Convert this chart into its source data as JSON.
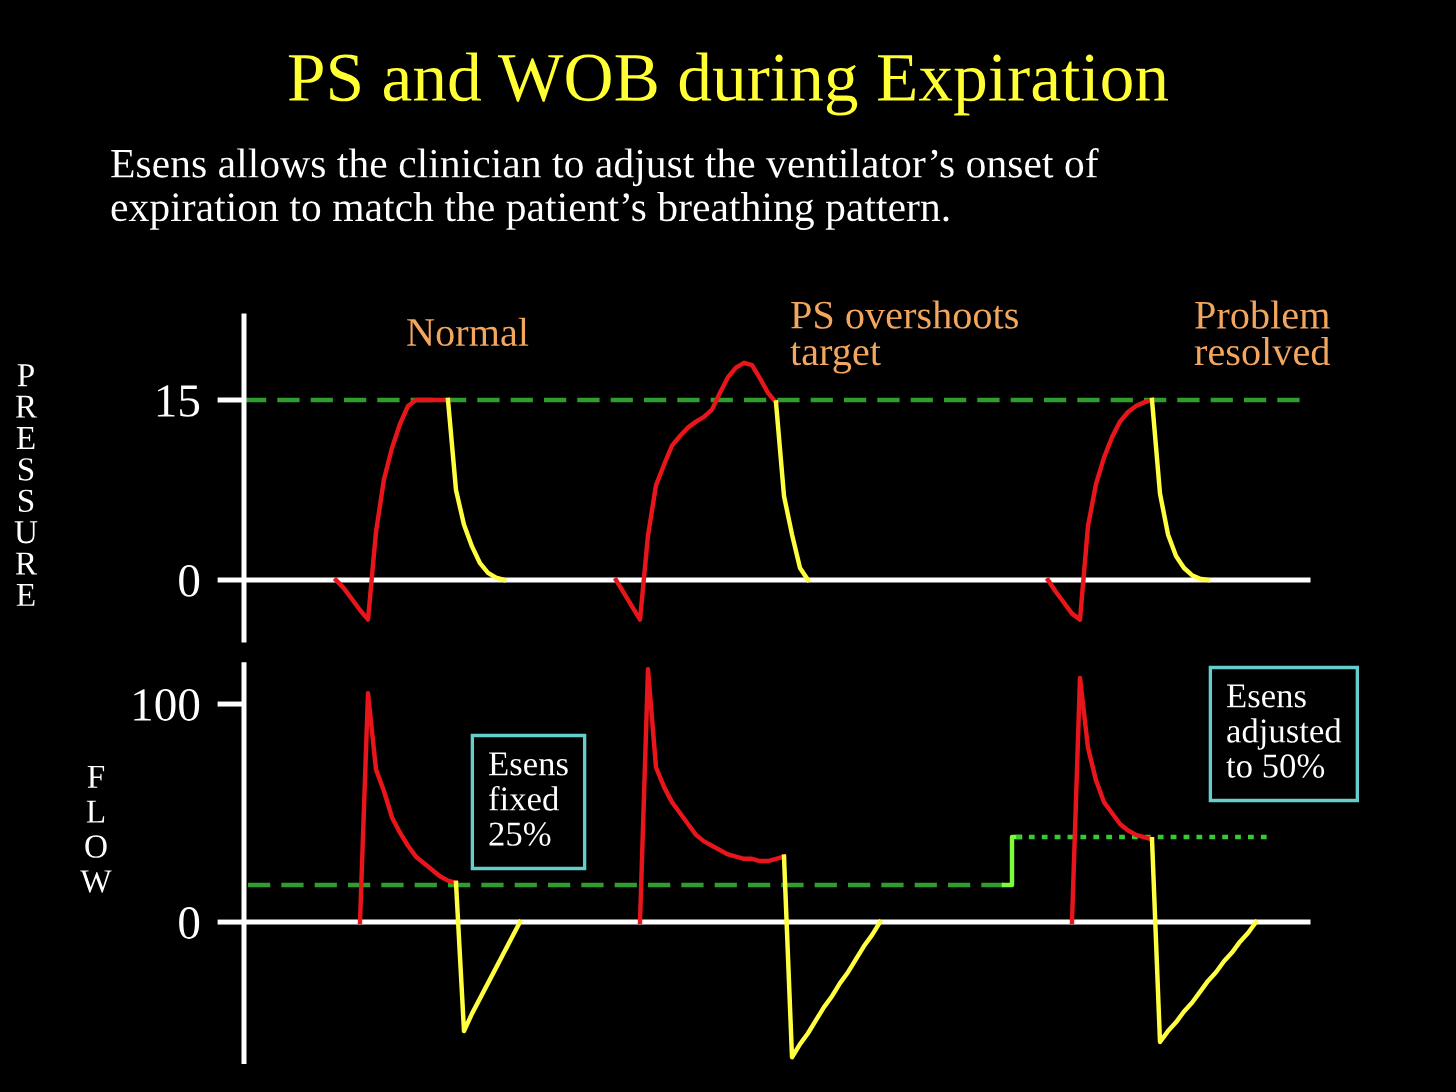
{
  "chart_data": [
    {
      "type": "line",
      "title": "PS and WOB during Expiration",
      "subtitle": "Esens allows the clinician to adjust the ventilator’s onset of\nexpiration to match the patient’s breathing pattern.",
      "ylabel": "PRESSURE",
      "categories": [
        null,
        null,
        null,
        null,
        null,
        null,
        null,
        null,
        null,
        null,
        null,
        null,
        null,
        null,
        null,
        null,
        null,
        null,
        null,
        null,
        null,
        null,
        null,
        null,
        null,
        null,
        null,
        null,
        null,
        null,
        null,
        null,
        null,
        null,
        null,
        null,
        null,
        null,
        null,
        null,
        null,
        null,
        null,
        null,
        null,
        null,
        null,
        null,
        null,
        null,
        null,
        null,
        null,
        null,
        null,
        null,
        null,
        null,
        null,
        null,
        null,
        null,
        null,
        null,
        null,
        null,
        null,
        null,
        null,
        null,
        null,
        null,
        null,
        null,
        null,
        null,
        null,
        null,
        null,
        null,
        null,
        null,
        null,
        null,
        null,
        null,
        null,
        null,
        null,
        null,
        null,
        null,
        null,
        null,
        null,
        null,
        null,
        null,
        null,
        null,
        null,
        null,
        null,
        null,
        null,
        null,
        null,
        null,
        null,
        null,
        null,
        null,
        null,
        null,
        null,
        null,
        null,
        null,
        null,
        null,
        null,
        null,
        null,
        null,
        null,
        null,
        null,
        null,
        null,
        null,
        null,
        null,
        null
      ],
      "series": [
        {
          "color": "#e8161b",
          "values": [
            null,
            null,
            null,
            null,
            null,
            null,
            null,
            null,
            null,
            null,
            null,
            0,
            -0.7,
            -1.6,
            -2.5,
            -3.3,
            4,
            8.4,
            11,
            13,
            14.5,
            15,
            15,
            15,
            15,
            15,
            null,
            null,
            null,
            null,
            null,
            null,
            null,
            null,
            null,
            null,
            null,
            null,
            null,
            null,
            null,
            null,
            null,
            null,
            null,
            null,
            0,
            -1.1,
            -2.2,
            -3.3,
            3.7,
            7.9,
            9.6,
            11.2,
            12,
            12.7,
            13.2,
            13.6,
            14.2,
            15.6,
            16.9,
            17.7,
            18.1,
            17.9,
            16.8,
            15.6,
            14.8,
            null,
            null,
            null,
            null,
            null,
            null,
            null,
            null,
            null,
            null,
            null,
            null,
            null,
            null,
            null,
            null,
            null,
            null,
            null,
            null,
            null,
            null,
            null,
            null,
            null,
            null,
            null,
            null,
            null,
            null,
            null,
            null,
            null,
            0,
            -1,
            -1.9,
            -2.8,
            -3.3,
            4.5,
            8,
            10.2,
            11.9,
            13.2,
            14,
            14.5,
            14.8,
            15,
            null,
            null,
            null,
            null,
            null,
            null,
            null,
            null,
            null,
            null,
            null,
            null,
            null,
            null,
            null,
            null,
            null,
            null,
            null
          ]
        },
        {
          "color": "#ffff40",
          "values": [
            null,
            null,
            null,
            null,
            null,
            null,
            null,
            null,
            null,
            null,
            null,
            null,
            null,
            null,
            null,
            null,
            null,
            null,
            null,
            null,
            null,
            null,
            null,
            null,
            null,
            15,
            7.5,
            4.6,
            2.8,
            1.4,
            0.6,
            0.2,
            0,
            null,
            null,
            null,
            null,
            null,
            null,
            null,
            null,
            null,
            null,
            null,
            null,
            null,
            null,
            null,
            null,
            null,
            null,
            null,
            null,
            null,
            null,
            null,
            null,
            null,
            null,
            null,
            null,
            null,
            null,
            null,
            null,
            null,
            14.8,
            7,
            3.8,
            1,
            0,
            null,
            null,
            null,
            null,
            null,
            null,
            null,
            null,
            null,
            null,
            null,
            null,
            null,
            null,
            null,
            null,
            null,
            null,
            null,
            null,
            null,
            null,
            null,
            null,
            null,
            null,
            null,
            null,
            null,
            null,
            null,
            null,
            null,
            null,
            null,
            null,
            null,
            null,
            null,
            null,
            null,
            null,
            15,
            7.2,
            3.8,
            2,
            1,
            0.4,
            0.1,
            0,
            null,
            null,
            null,
            null,
            null,
            null,
            null,
            null,
            null,
            null,
            null,
            null
          ]
        }
      ],
      "ylim": [
        -5,
        22
      ],
      "yticks": [
        0,
        15
      ],
      "ref_lines": [
        {
          "axis": "y",
          "value": 15,
          "color": "#2f9e2f",
          "line_style": "dashed"
        }
      ],
      "annotations": [
        "Normal",
        "PS overshoots\ntarget",
        "Problem\nresolved"
      ],
      "tick_labels": "y"
    },
    {
      "type": "line",
      "ylabel": "FLOW",
      "categories": [
        null,
        null,
        null,
        null,
        null,
        null,
        null,
        null,
        null,
        null,
        null,
        null,
        null,
        null,
        null,
        null,
        null,
        null,
        null,
        null,
        null,
        null,
        null,
        null,
        null,
        null,
        null,
        null,
        null,
        null,
        null,
        null,
        null,
        null,
        null,
        null,
        null,
        null,
        null,
        null,
        null,
        null,
        null,
        null,
        null,
        null,
        null,
        null,
        null,
        null,
        null,
        null,
        null,
        null,
        null,
        null,
        null,
        null,
        null,
        null,
        null,
        null,
        null,
        null,
        null,
        null,
        null,
        null,
        null,
        null,
        null,
        null,
        null,
        null,
        null,
        null,
        null,
        null,
        null,
        null,
        null,
        null,
        null,
        null,
        null,
        null,
        null,
        null,
        null,
        null,
        null,
        null,
        null,
        null,
        null,
        null,
        null,
        null,
        null,
        null,
        null,
        null,
        null,
        null,
        null,
        null,
        null,
        null,
        null,
        null,
        null,
        null,
        null,
        null,
        null,
        null,
        null,
        null,
        null,
        null,
        null,
        null,
        null,
        null,
        null,
        null,
        null,
        null,
        null,
        null,
        null,
        null,
        null
      ],
      "series": [
        {
          "color": "#2f9e2f",
          "line_style": "dashed",
          "values": [
            17,
            17,
            17,
            17,
            17,
            17,
            17,
            17,
            17,
            17,
            17,
            17,
            17,
            17,
            17,
            17,
            17,
            17,
            17,
            17,
            17,
            17,
            17,
            17,
            17,
            17,
            17,
            17,
            17,
            17,
            17,
            17,
            17,
            17,
            17,
            17,
            17,
            17,
            17,
            17,
            17,
            17,
            17,
            17,
            17,
            17,
            17,
            17,
            17,
            17,
            17,
            17,
            17,
            17,
            17,
            17,
            17,
            17,
            17,
            17,
            17,
            17,
            17,
            17,
            17,
            17,
            17,
            17,
            17,
            17,
            17,
            17,
            17,
            17,
            17,
            17,
            17,
            17,
            17,
            17,
            17,
            17,
            17,
            17,
            17,
            17,
            17,
            17,
            17,
            17,
            17,
            17,
            17,
            17,
            17,
            17,
            null,
            null,
            null,
            null,
            null,
            null,
            null,
            null,
            null,
            null,
            null,
            null,
            null,
            null,
            null,
            null,
            null,
            null,
            null,
            null,
            null,
            null,
            null,
            null,
            null,
            null,
            null,
            null,
            null,
            null,
            null,
            null,
            null,
            null,
            null,
            null,
            null
          ]
        },
        {
          "type": "step",
          "color": "#7cfc3c",
          "line_style": "solid",
          "values": [
            null,
            null,
            null,
            null,
            null,
            null,
            null,
            null,
            null,
            null,
            null,
            null,
            null,
            null,
            null,
            null,
            null,
            null,
            null,
            null,
            null,
            null,
            null,
            null,
            null,
            null,
            null,
            null,
            null,
            null,
            null,
            null,
            null,
            null,
            null,
            null,
            null,
            null,
            null,
            null,
            null,
            null,
            null,
            null,
            null,
            null,
            null,
            null,
            null,
            null,
            null,
            null,
            null,
            null,
            null,
            null,
            null,
            null,
            null,
            null,
            null,
            null,
            null,
            null,
            null,
            null,
            null,
            null,
            null,
            null,
            null,
            null,
            null,
            null,
            null,
            null,
            null,
            null,
            null,
            null,
            null,
            null,
            null,
            null,
            null,
            null,
            null,
            null,
            null,
            null,
            null,
            null,
            null,
            null,
            null,
            17,
            39,
            null,
            null,
            null,
            null,
            null,
            null,
            null,
            null,
            null,
            null,
            null,
            null,
            null,
            null,
            null,
            null,
            null,
            null,
            null,
            null,
            null,
            null,
            null,
            null,
            null,
            null,
            null,
            null,
            null,
            null,
            null,
            null,
            null,
            null,
            null,
            null
          ]
        },
        {
          "color": "#33cc33",
          "line_style": "dotted",
          "values": [
            null,
            null,
            null,
            null,
            null,
            null,
            null,
            null,
            null,
            null,
            null,
            null,
            null,
            null,
            null,
            null,
            null,
            null,
            null,
            null,
            null,
            null,
            null,
            null,
            null,
            null,
            null,
            null,
            null,
            null,
            null,
            null,
            null,
            null,
            null,
            null,
            null,
            null,
            null,
            null,
            null,
            null,
            null,
            null,
            null,
            null,
            null,
            null,
            null,
            null,
            null,
            null,
            null,
            null,
            null,
            null,
            null,
            null,
            null,
            null,
            null,
            null,
            null,
            null,
            null,
            null,
            null,
            null,
            null,
            null,
            null,
            null,
            null,
            null,
            null,
            null,
            null,
            null,
            null,
            null,
            null,
            null,
            null,
            null,
            null,
            null,
            null,
            null,
            null,
            null,
            null,
            null,
            null,
            null,
            null,
            null,
            39,
            39,
            39,
            39,
            39,
            39,
            39,
            39,
            39,
            39,
            39,
            39,
            39,
            39,
            39,
            39,
            39,
            39,
            39,
            39,
            39,
            39,
            39,
            39,
            39,
            39,
            39,
            39,
            39,
            39,
            39,
            39,
            39,
            null,
            null,
            null,
            null
          ]
        },
        {
          "color": "#e8161b",
          "values": [
            null,
            null,
            null,
            null,
            null,
            null,
            null,
            null,
            null,
            null,
            null,
            null,
            null,
            null,
            0,
            105,
            70,
            60,
            48,
            41,
            35,
            30,
            27,
            24,
            21,
            19,
            18,
            null,
            null,
            null,
            null,
            null,
            null,
            null,
            null,
            null,
            null,
            null,
            null,
            null,
            null,
            null,
            null,
            null,
            null,
            null,
            null,
            null,
            null,
            0,
            116,
            71,
            62,
            55,
            50,
            45,
            40,
            37,
            35,
            33,
            31,
            30,
            29,
            29,
            28,
            28,
            29,
            30,
            null,
            null,
            null,
            null,
            null,
            null,
            null,
            null,
            null,
            null,
            null,
            null,
            null,
            null,
            null,
            null,
            null,
            null,
            null,
            null,
            null,
            null,
            null,
            null,
            null,
            null,
            null,
            null,
            null,
            null,
            null,
            null,
            null,
            null,
            null,
            0,
            112,
            80,
            65,
            55,
            50,
            45,
            42,
            40,
            39,
            38,
            null,
            null,
            null,
            null,
            null,
            null,
            null,
            null,
            null,
            null,
            null,
            null,
            null,
            null,
            null,
            null,
            null,
            null,
            null
          ]
        },
        {
          "color": "#ffff40",
          "values": [
            null,
            null,
            null,
            null,
            null,
            null,
            null,
            null,
            null,
            null,
            null,
            null,
            null,
            null,
            null,
            null,
            null,
            null,
            null,
            null,
            null,
            null,
            null,
            null,
            null,
            null,
            18,
            -50,
            -42,
            -35,
            -28,
            -21,
            -14,
            -7,
            0,
            null,
            null,
            null,
            null,
            null,
            null,
            null,
            null,
            null,
            null,
            null,
            null,
            null,
            null,
            null,
            null,
            null,
            null,
            null,
            null,
            null,
            null,
            null,
            null,
            null,
            null,
            null,
            null,
            null,
            null,
            null,
            null,
            30,
            -62,
            -56,
            -51,
            -45,
            -39,
            -34,
            -28,
            -23,
            -17,
            -11,
            -6,
            0,
            null,
            null,
            null,
            null,
            null,
            null,
            null,
            null,
            null,
            null,
            null,
            null,
            null,
            null,
            null,
            null,
            null,
            null,
            null,
            null,
            null,
            null,
            null,
            null,
            null,
            null,
            null,
            null,
            null,
            null,
            null,
            null,
            null,
            38,
            -55,
            -50,
            -46,
            -41,
            -37,
            -32,
            -27,
            -23,
            -18,
            -14,
            -9,
            -5,
            0,
            null,
            null,
            null,
            null,
            null,
            null
          ]
        }
      ],
      "ylim": [
        -64,
        118
      ],
      "yticks": [
        0,
        100
      ],
      "annotations": [
        "Esens\nfixed\n25%",
        "Esens\nadjusted\nto 50%"
      ],
      "tick_labels": "y"
    }
  ]
}
